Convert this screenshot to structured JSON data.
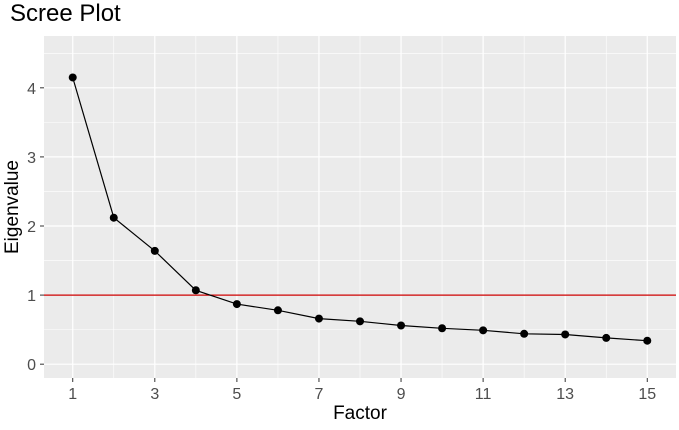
{
  "chart_data": {
    "type": "line",
    "title": "Scree Plot",
    "xlabel": "Factor",
    "ylabel": "Eigenvalue",
    "xlim": [
      0.3,
      15.7
    ],
    "ylim": [
      -0.2,
      4.75
    ],
    "x_ticks": [
      1,
      3,
      5,
      7,
      9,
      11,
      13,
      15
    ],
    "y_ticks": [
      0,
      1,
      2,
      3,
      4
    ],
    "grid": true,
    "panel_background": "#ebebeb",
    "grid_color": "#ffffff",
    "line_color": "#000000",
    "point_color": "#000000",
    "series": [
      {
        "x": [
          1,
          2,
          3,
          4,
          5,
          6,
          7,
          8,
          9,
          10,
          11,
          12,
          13,
          14,
          15
        ],
        "values": [
          4.15,
          2.12,
          1.64,
          1.07,
          0.87,
          0.78,
          0.66,
          0.62,
          0.56,
          0.52,
          0.49,
          0.44,
          0.43,
          0.38,
          0.34
        ]
      }
    ],
    "reference_line": {
      "y": 1,
      "color": "#cc0000"
    }
  }
}
